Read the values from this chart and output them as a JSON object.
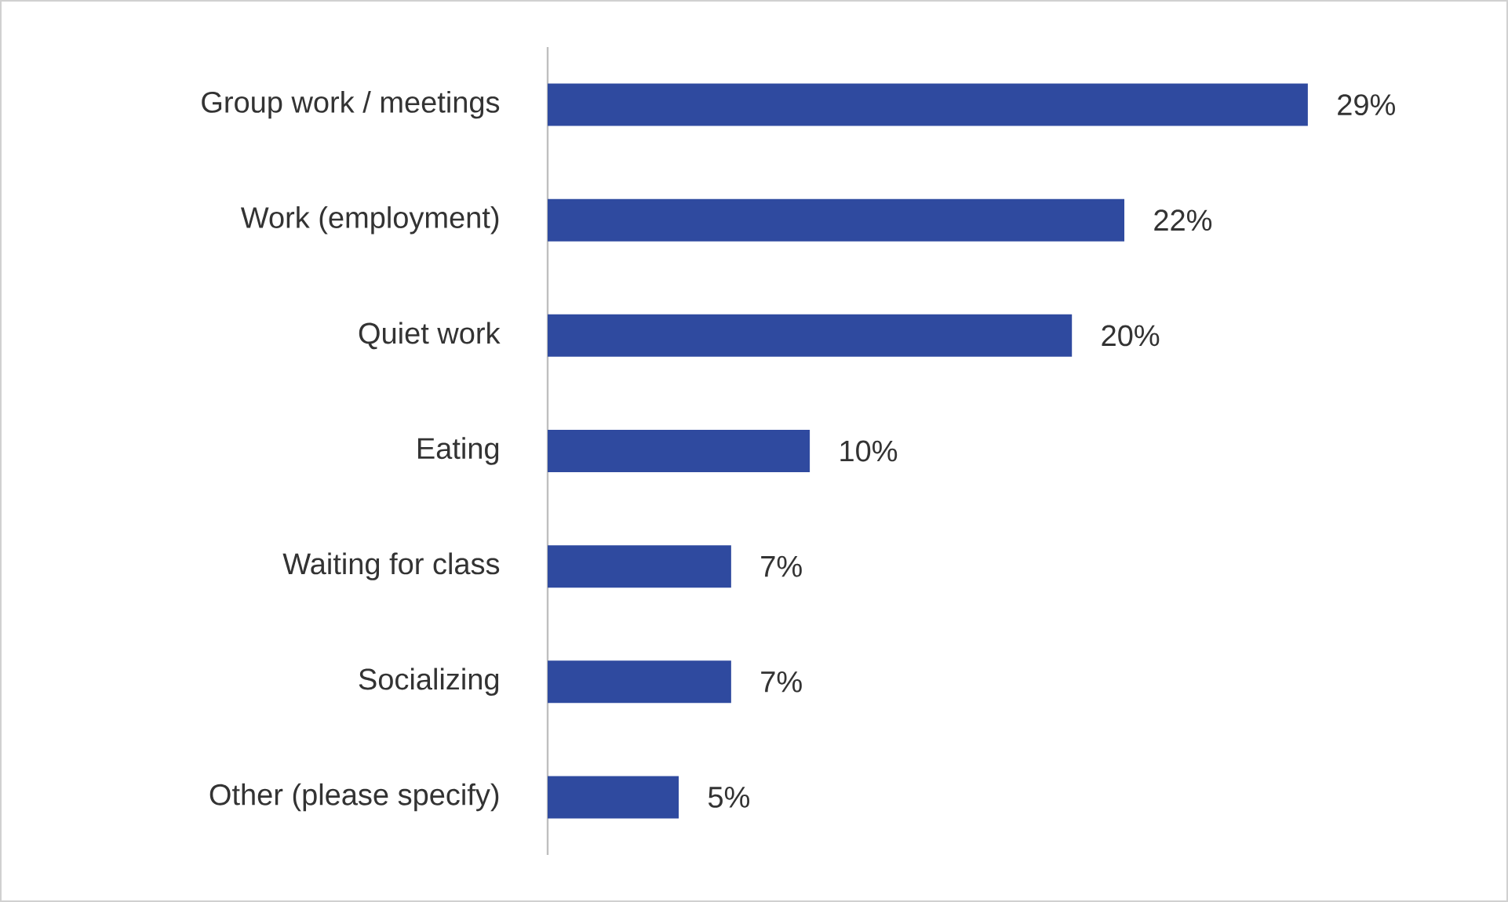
{
  "chart_data": {
    "type": "bar",
    "orientation": "horizontal",
    "categories": [
      "Group work / meetings",
      "Work (employment)",
      "Quiet work",
      "Eating",
      "Waiting for class",
      "Socializing",
      "Other (please specify)"
    ],
    "values": [
      29,
      22,
      20,
      10,
      7,
      7,
      5
    ],
    "value_labels": [
      "29%",
      "22%",
      "20%",
      "10%",
      "7%",
      "7%",
      "5%"
    ],
    "color": "#2f4a9f"
  }
}
